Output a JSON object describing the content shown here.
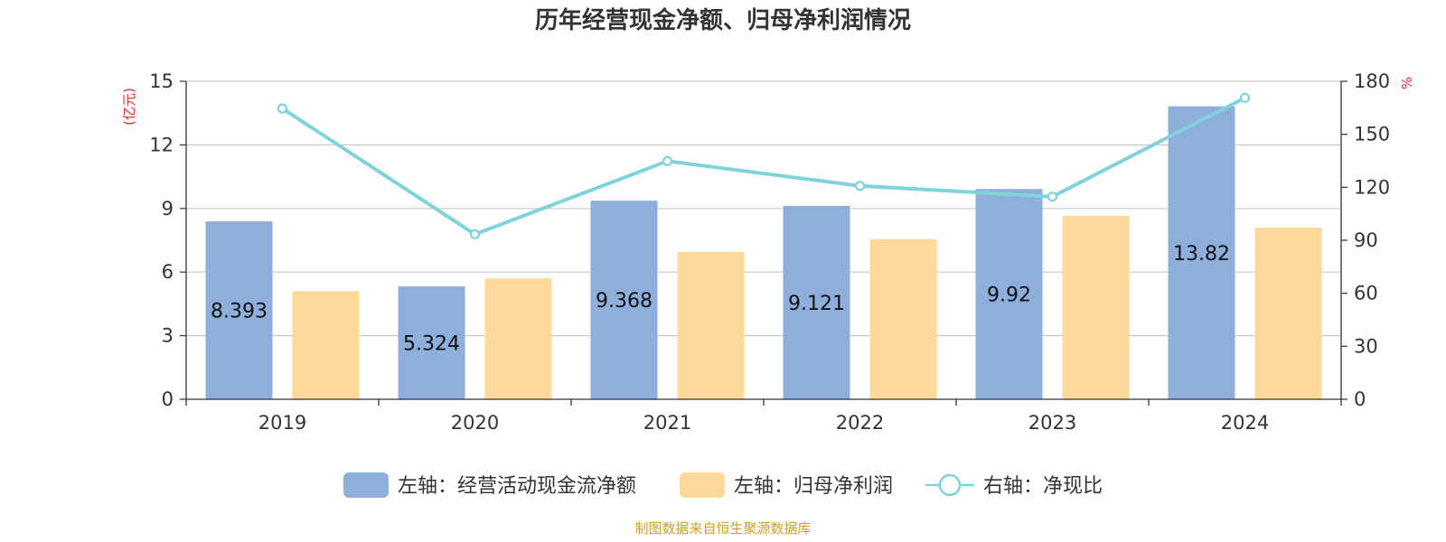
{
  "chart_data": {
    "type": "bar",
    "title": "历年经营现金净额、归母净利润情况",
    "categories": [
      "2019",
      "2020",
      "2021",
      "2022",
      "2023",
      "2024"
    ],
    "left_axis": {
      "unit": "(亿元)",
      "min": 0,
      "max": 15,
      "ticks": [
        "0",
        "3",
        "6",
        "9",
        "12",
        "15"
      ]
    },
    "right_axis": {
      "unit": "%",
      "min": 0,
      "max": 180,
      "ticks": [
        "0",
        "30",
        "60",
        "90",
        "120",
        "150",
        "180"
      ]
    },
    "series": [
      {
        "name": "左轴：经营活动现金流净额",
        "type": "bar",
        "axis": "left",
        "color": "#8eaedb",
        "values": [
          8.393,
          5.324,
          9.368,
          9.121,
          9.92,
          13.82
        ],
        "labels": [
          "8.393",
          "5.324",
          "9.368",
          "9.121",
          "9.92",
          "13.82"
        ]
      },
      {
        "name": "左轴：归母净利润",
        "type": "bar",
        "axis": "left",
        "color": "#fed999",
        "values": [
          5.1,
          5.7,
          6.95,
          7.55,
          8.65,
          8.1
        ]
      },
      {
        "name": "右轴：净现比",
        "type": "line",
        "axis": "right",
        "color": "#80d3d8",
        "values": [
          164.6,
          93.4,
          134.8,
          120.8,
          114.7,
          170.6
        ]
      }
    ],
    "grid": true,
    "legend_position": "bottom-center",
    "source": "制图数据来自恒生聚源数据库"
  }
}
